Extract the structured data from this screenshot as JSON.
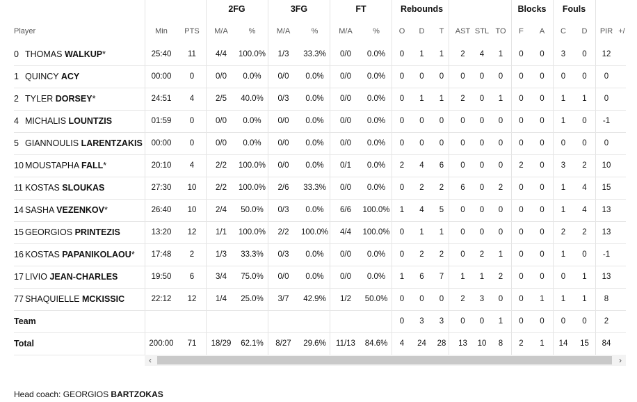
{
  "groups": [
    "2FG",
    "3FG",
    "FT",
    "Rebounds",
    "Blocks",
    "Fouls"
  ],
  "columns": [
    "Player",
    "Min",
    "PTS",
    "M/A",
    "%",
    "M/A",
    "%",
    "M/A",
    "%",
    "O",
    "D",
    "T",
    "AST",
    "STL",
    "TO",
    "F",
    "A",
    "C",
    "D",
    "PIR",
    "+/"
  ],
  "rows": [
    {
      "num": "0",
      "first": "THOMAS",
      "last": "WALKUP",
      "star": "*",
      "min": "25:40",
      "pts": "11",
      "fg2": "4/4",
      "fg2p": "100.0%",
      "fg3": "1/3",
      "fg3p": "33.3%",
      "ft": "0/0",
      "ftp": "0.0%",
      "o": "0",
      "d": "1",
      "t": "1",
      "ast": "2",
      "stl": "4",
      "to": "1",
      "bf": "0",
      "ba": "0",
      "fc": "3",
      "fd": "0",
      "pir": "12"
    },
    {
      "num": "1",
      "first": "QUINCY",
      "last": "ACY",
      "star": "",
      "min": "00:00",
      "pts": "0",
      "fg2": "0/0",
      "fg2p": "0.0%",
      "fg3": "0/0",
      "fg3p": "0.0%",
      "ft": "0/0",
      "ftp": "0.0%",
      "o": "0",
      "d": "0",
      "t": "0",
      "ast": "0",
      "stl": "0",
      "to": "0",
      "bf": "0",
      "ba": "0",
      "fc": "0",
      "fd": "0",
      "pir": "0"
    },
    {
      "num": "2",
      "first": "TYLER",
      "last": "DORSEY",
      "star": "*",
      "min": "24:51",
      "pts": "4",
      "fg2": "2/5",
      "fg2p": "40.0%",
      "fg3": "0/3",
      "fg3p": "0.0%",
      "ft": "0/0",
      "ftp": "0.0%",
      "o": "0",
      "d": "1",
      "t": "1",
      "ast": "2",
      "stl": "0",
      "to": "1",
      "bf": "0",
      "ba": "0",
      "fc": "1",
      "fd": "1",
      "pir": "0"
    },
    {
      "num": "4",
      "first": "MICHALIS",
      "last": "LOUNTZIS",
      "star": "",
      "min": "01:59",
      "pts": "0",
      "fg2": "0/0",
      "fg2p": "0.0%",
      "fg3": "0/0",
      "fg3p": "0.0%",
      "ft": "0/0",
      "ftp": "0.0%",
      "o": "0",
      "d": "0",
      "t": "0",
      "ast": "0",
      "stl": "0",
      "to": "0",
      "bf": "0",
      "ba": "0",
      "fc": "1",
      "fd": "0",
      "pir": "-1"
    },
    {
      "num": "5",
      "first": "GIANNOULIS",
      "last": "LARENTZAKIS",
      "star": "",
      "min": "00:00",
      "pts": "0",
      "fg2": "0/0",
      "fg2p": "0.0%",
      "fg3": "0/0",
      "fg3p": "0.0%",
      "ft": "0/0",
      "ftp": "0.0%",
      "o": "0",
      "d": "0",
      "t": "0",
      "ast": "0",
      "stl": "0",
      "to": "0",
      "bf": "0",
      "ba": "0",
      "fc": "0",
      "fd": "0",
      "pir": "0"
    },
    {
      "num": "10",
      "first": "MOUSTAPHA",
      "last": "FALL",
      "star": "*",
      "min": "20:10",
      "pts": "4",
      "fg2": "2/2",
      "fg2p": "100.0%",
      "fg3": "0/0",
      "fg3p": "0.0%",
      "ft": "0/1",
      "ftp": "0.0%",
      "o": "2",
      "d": "4",
      "t": "6",
      "ast": "0",
      "stl": "0",
      "to": "0",
      "bf": "2",
      "ba": "0",
      "fc": "3",
      "fd": "2",
      "pir": "10"
    },
    {
      "num": "11",
      "first": "KOSTAS",
      "last": "SLOUKAS",
      "star": "",
      "min": "27:30",
      "pts": "10",
      "fg2": "2/2",
      "fg2p": "100.0%",
      "fg3": "2/6",
      "fg3p": "33.3%",
      "ft": "0/0",
      "ftp": "0.0%",
      "o": "0",
      "d": "2",
      "t": "2",
      "ast": "6",
      "stl": "0",
      "to": "2",
      "bf": "0",
      "ba": "0",
      "fc": "1",
      "fd": "4",
      "pir": "15"
    },
    {
      "num": "14",
      "first": "SASHA",
      "last": "VEZENKOV",
      "star": "*",
      "min": "26:40",
      "pts": "10",
      "fg2": "2/4",
      "fg2p": "50.0%",
      "fg3": "0/3",
      "fg3p": "0.0%",
      "ft": "6/6",
      "ftp": "100.0%",
      "o": "1",
      "d": "4",
      "t": "5",
      "ast": "0",
      "stl": "0",
      "to": "0",
      "bf": "0",
      "ba": "0",
      "fc": "1",
      "fd": "4",
      "pir": "13"
    },
    {
      "num": "15",
      "first": "GEORGIOS",
      "last": "PRINTEZIS",
      "star": "",
      "min": "13:20",
      "pts": "12",
      "fg2": "1/1",
      "fg2p": "100.0%",
      "fg3": "2/2",
      "fg3p": "100.0%",
      "ft": "4/4",
      "ftp": "100.0%",
      "o": "0",
      "d": "1",
      "t": "1",
      "ast": "0",
      "stl": "0",
      "to": "0",
      "bf": "0",
      "ba": "0",
      "fc": "2",
      "fd": "2",
      "pir": "13"
    },
    {
      "num": "16",
      "first": "KOSTAS",
      "last": "PAPANIKOLAOU",
      "star": "*",
      "min": "17:48",
      "pts": "2",
      "fg2": "1/3",
      "fg2p": "33.3%",
      "fg3": "0/3",
      "fg3p": "0.0%",
      "ft": "0/0",
      "ftp": "0.0%",
      "o": "0",
      "d": "2",
      "t": "2",
      "ast": "0",
      "stl": "2",
      "to": "1",
      "bf": "0",
      "ba": "0",
      "fc": "1",
      "fd": "0",
      "pir": "-1"
    },
    {
      "num": "17",
      "first": "LIVIO",
      "last": "JEAN-CHARLES",
      "star": "",
      "min": "19:50",
      "pts": "6",
      "fg2": "3/4",
      "fg2p": "75.0%",
      "fg3": "0/0",
      "fg3p": "0.0%",
      "ft": "0/0",
      "ftp": "0.0%",
      "o": "1",
      "d": "6",
      "t": "7",
      "ast": "1",
      "stl": "1",
      "to": "2",
      "bf": "0",
      "ba": "0",
      "fc": "0",
      "fd": "1",
      "pir": "13"
    },
    {
      "num": "77",
      "first": "SHAQUIELLE",
      "last": "MCKISSIC",
      "star": "",
      "min": "22:12",
      "pts": "12",
      "fg2": "1/4",
      "fg2p": "25.0%",
      "fg3": "3/7",
      "fg3p": "42.9%",
      "ft": "1/2",
      "ftp": "50.0%",
      "o": "0",
      "d": "0",
      "t": "0",
      "ast": "2",
      "stl": "3",
      "to": "0",
      "bf": "0",
      "ba": "1",
      "fc": "1",
      "fd": "1",
      "pir": "8"
    }
  ],
  "team": {
    "label": "Team",
    "min": "",
    "pts": "",
    "fg2": "",
    "fg2p": "",
    "fg3": "",
    "fg3p": "",
    "ft": "",
    "ftp": "",
    "o": "0",
    "d": "3",
    "t": "3",
    "ast": "0",
    "stl": "0",
    "to": "1",
    "bf": "0",
    "ba": "0",
    "fc": "0",
    "fd": "0",
    "pir": "2"
  },
  "total": {
    "label": "Total",
    "min": "200:00",
    "pts": "71",
    "fg2": "18/29",
    "fg2p": "62.1%",
    "fg3": "8/27",
    "fg3p": "29.6%",
    "ft": "11/13",
    "ftp": "84.6%",
    "o": "4",
    "d": "24",
    "t": "28",
    "ast": "13",
    "stl": "10",
    "to": "8",
    "bf": "2",
    "ba": "1",
    "fc": "14",
    "fd": "15",
    "pir": "84"
  },
  "scroll": {
    "left_glyph": "‹",
    "right_glyph": "›"
  },
  "coach": {
    "label": "Head coach:",
    "first": "GEORGIOS",
    "last": "BARTZOKAS"
  }
}
